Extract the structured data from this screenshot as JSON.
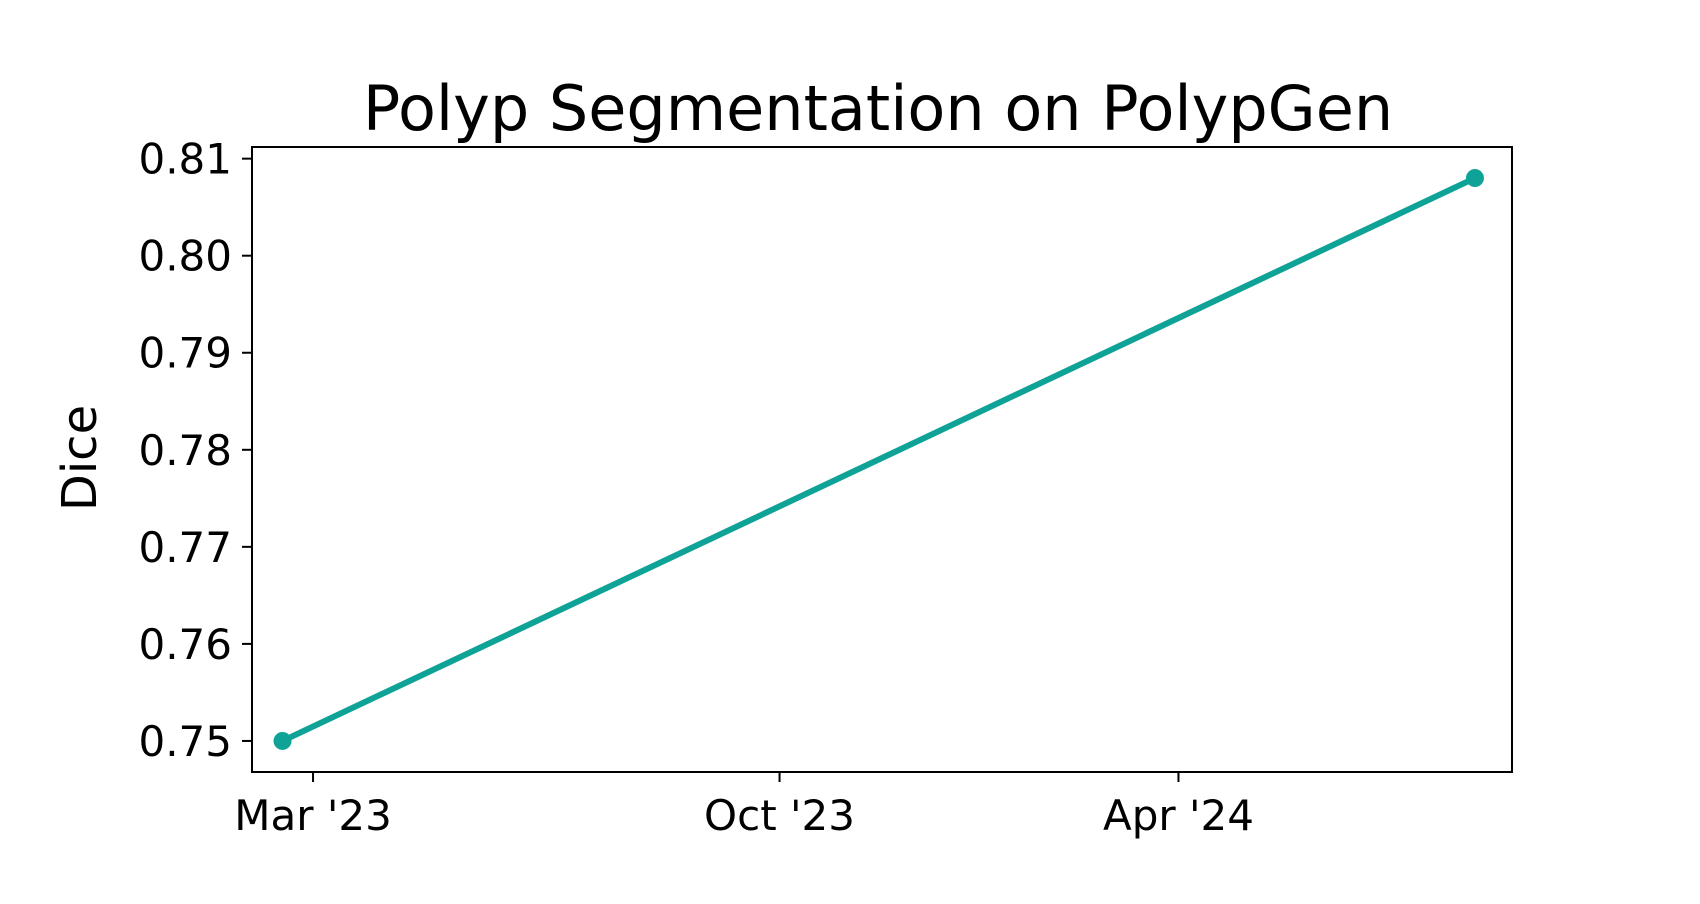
{
  "chart_data": {
    "type": "line",
    "title": "Polyp Segmentation on PolypGen",
    "xlabel": "",
    "ylabel": "Dice",
    "x_ticks": [
      {
        "date": "2023-03-01",
        "label": "Mar '23"
      },
      {
        "date": "2023-10-01",
        "label": "Oct '23"
      },
      {
        "date": "2024-04-01",
        "label": "Apr '24"
      }
    ],
    "x_range": [
      "2023-02-01",
      "2024-09-01"
    ],
    "y_ticks": [
      0.75,
      0.76,
      0.77,
      0.78,
      0.79,
      0.8,
      0.81
    ],
    "y_tick_labels": [
      "0.75",
      "0.76",
      "0.77",
      "0.78",
      "0.79",
      "0.80",
      "0.81"
    ],
    "ylim": [
      0.7468,
      0.8112
    ],
    "grid": false,
    "series": [
      {
        "color": "#0fa398",
        "points": [
          {
            "x": "2023-02-15",
            "y": 0.75
          },
          {
            "x": "2024-08-15",
            "y": 0.808
          }
        ]
      }
    ]
  }
}
